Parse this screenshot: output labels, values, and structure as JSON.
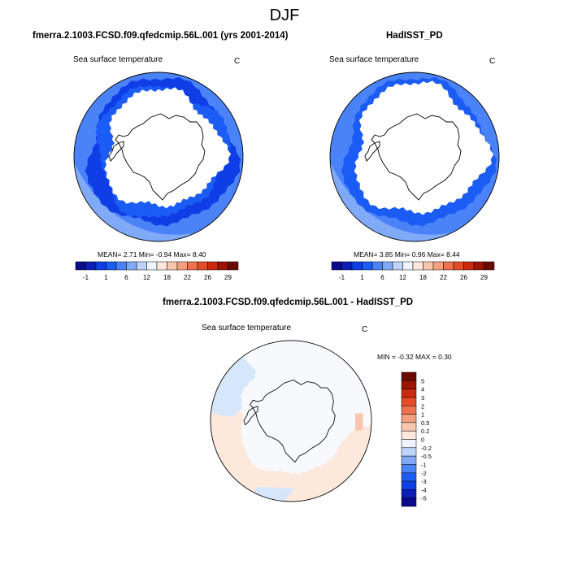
{
  "figure": {
    "title": "DJF",
    "bottom_title": "fmerra.2.1003.FCSD.f09.qfedcmip.56L.001 - HadISST_PD"
  },
  "panels": [
    {
      "title": "fmerra.2.1003.FCSD.f09.qfedcmip.56L.001 (yrs 2001-2014)",
      "variable": "Sea surface temperature",
      "units": "C",
      "stats": "MEAN=   2.71  Min=  -0.94  Max=   8.40"
    },
    {
      "title": "HadISST_PD",
      "variable": "Sea surface temperature",
      "units": "C",
      "stats": "MEAN=   3.85  Min=   0.96  Max=   8.44"
    },
    {
      "variable": "Sea surface temperature",
      "units": "C",
      "stats": "MIN =  -0.32 MAX =   0.30"
    }
  ],
  "colorbar_abs": {
    "colors": [
      "#0a0a8c",
      "#0b1fb8",
      "#0f3ee6",
      "#1b5cf5",
      "#4a82f7",
      "#80aaf8",
      "#bcd4fb",
      "#eef3fe",
      "#fde8dc",
      "#f9c7ae",
      "#f4a07f",
      "#ee7250",
      "#e44b27",
      "#cb2a0e",
      "#9c1406",
      "#6b0a04"
    ],
    "labels": [
      "-1",
      "1",
      "6",
      "12",
      "18",
      "22",
      "26",
      "29"
    ]
  },
  "colorbar_diff": {
    "colors": [
      "#0a0a8c",
      "#0b1fb8",
      "#0f3ee6",
      "#1b5cf5",
      "#4a82f7",
      "#80aaf8",
      "#bcd4fb",
      "#eef3fe",
      "#fde8dc",
      "#f9c7ae",
      "#f4a07f",
      "#ee7250",
      "#e44b27",
      "#cb2a0e",
      "#9c1406",
      "#6b0a04"
    ],
    "labels": [
      "5",
      "4",
      "3",
      "2",
      "1",
      "0.5",
      "0.2",
      "0",
      "-0.2",
      "-0.5",
      "-1",
      "-2",
      "-3",
      "-4",
      "-5"
    ]
  },
  "map_colors": {
    "ice": "#ffffff",
    "sst_near_ice": "#0f3ee6",
    "sst_mid": "#1b5cf5",
    "sst_outer": "#4a82f7",
    "sst_outer_light": "#80aaf8",
    "diff_warm": "#fde8dc",
    "diff_cool": "#d7e7fb",
    "diff_neutral": "#f7f9fd"
  }
}
